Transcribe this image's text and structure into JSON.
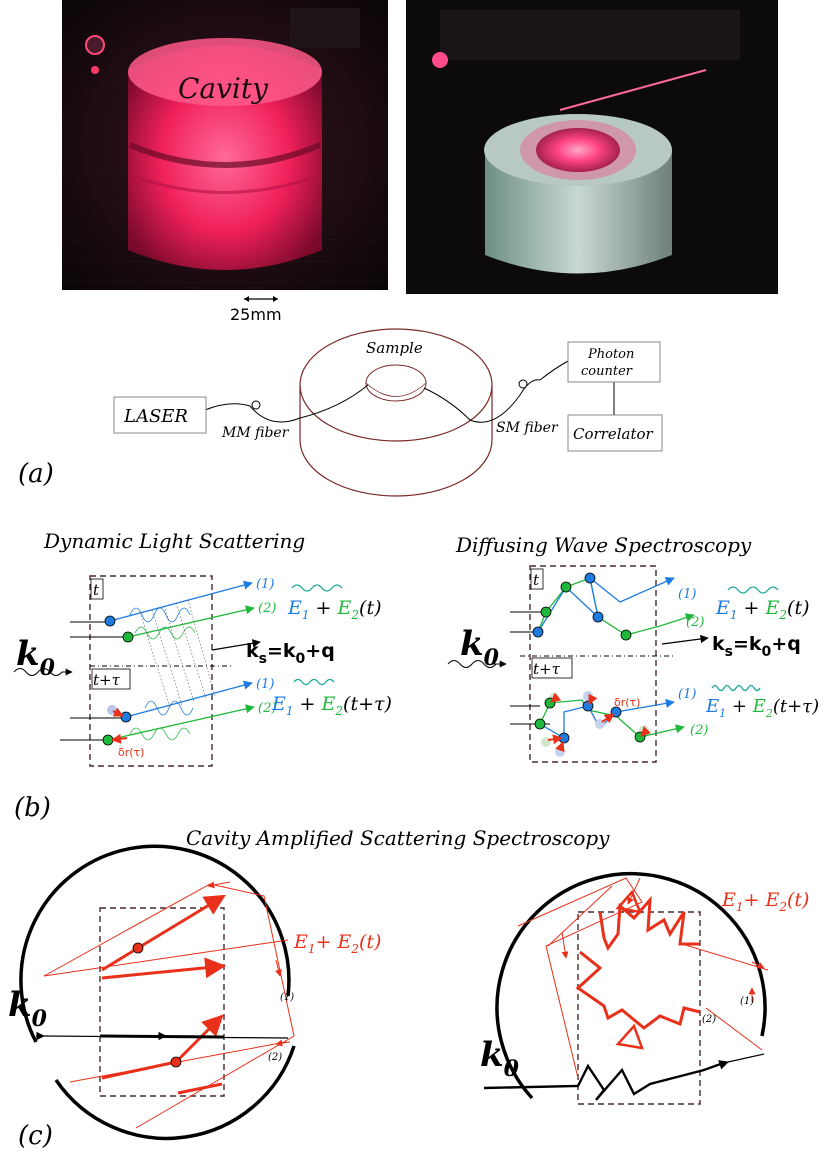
{
  "panel_a": {
    "photo_left_label": "Cavity",
    "scale_label": "25mm",
    "sample_label": "Sample",
    "laser_label": "LASER",
    "mm_fiber_label": "MM fiber",
    "sm_fiber_label": "SM fiber",
    "photon_counter_line1": "Photon",
    "photon_counter_line2": "counter",
    "correlator_label": "Correlator",
    "panel_label": "(a)"
  },
  "panel_b": {
    "dls_title": "Dynamic Light Scattering",
    "dws_title": "Diffusing Wave Spectroscopy",
    "t_label": "t",
    "t_tau_label": "t+τ",
    "k0": "k",
    "k0_sub": "0",
    "ks_text": "k",
    "ks_sub": "s",
    "ks_eq": "=k",
    "ks_eq_sub": "0",
    "ks_plus": "+q",
    "ray1": "(1)",
    "ray2": "(2)",
    "dr_label": "δr(τ)",
    "field_t_E1": "E",
    "field_sub1": "1",
    "field_plus": " + ",
    "field_E2": "E",
    "field_sub2": "2",
    "field_t": "(t)",
    "field_ttau": "(t+τ)",
    "panel_label": "(b)"
  },
  "panel_c": {
    "title": "Cavity Amplified Scattering Spectroscopy",
    "k0": "k",
    "k0_sub": "0",
    "field_E1": "E",
    "field_sub1": "1",
    "field_plus": "+ ",
    "field_E2": "E",
    "field_sub2": "2",
    "field_t": "(t)",
    "ray1": "(1)",
    "ray2": "(2)",
    "panel_label": "(c)"
  },
  "colors": {
    "blue": "#1e7be0",
    "green": "#1fb83c",
    "red": "#e8301a",
    "teal": "#1aa89a",
    "dashbox": "#4a2a2a",
    "cavity_glow": "#ff2a6a",
    "cavity_red": "#7a2a2a"
  }
}
